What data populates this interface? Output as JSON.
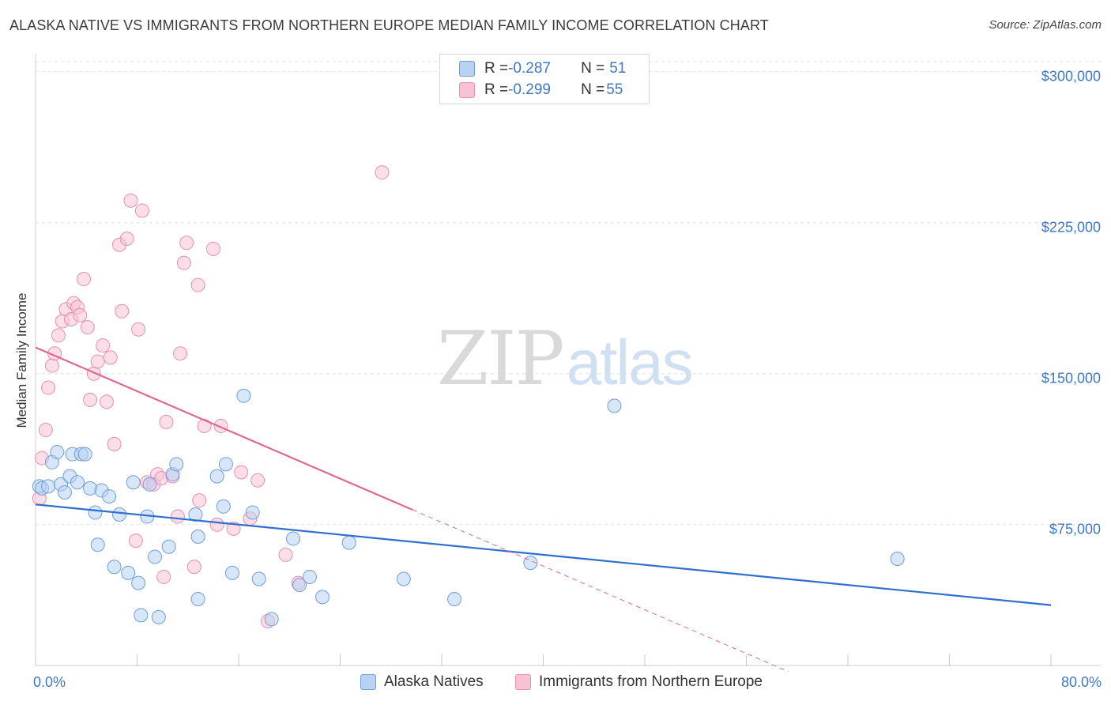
{
  "header": {
    "title": "ALASKA NATIVE VS IMMIGRANTS FROM NORTHERN EUROPE MEDIAN FAMILY INCOME CORRELATION CHART",
    "source": "Source: ZipAtlas.com"
  },
  "watermark": {
    "zip": "ZIP",
    "atlas": "atlas"
  },
  "legend_top": {
    "rows": [
      {
        "r_label": "R = ",
        "r_value": "-0.287",
        "n_label": "N = ",
        "n_value": "51"
      },
      {
        "r_label": "R = ",
        "r_value": "-0.299",
        "n_label": "N = ",
        "n_value": "55"
      }
    ]
  },
  "colors": {
    "blue_fill": "#b7d2f2",
    "blue_stroke": "#6e9fdc",
    "blue_line": "#2f6fcf",
    "pink_fill": "#f7c3d4",
    "pink_stroke": "#e890ae",
    "pink_line": "#e06794",
    "axis_text": "#3f78c4",
    "grid": "#e2e2e2"
  },
  "chart_data": {
    "type": "scatter",
    "title": "ALASKA NATIVE VS IMMIGRANTS FROM NORTHERN EUROPE MEDIAN FAMILY INCOME CORRELATION CHART",
    "xlabel": "",
    "ylabel": "Median Family Income",
    "xlim": [
      0,
      80
    ],
    "ylim": [
      5000,
      305000
    ],
    "x_tick_labels": [
      "0.0%",
      "80.0%"
    ],
    "y_ticks": [
      75000,
      150000,
      225000,
      300000
    ],
    "y_tick_labels": [
      "$75,000",
      "$150,000",
      "$225,000",
      "$300,000"
    ],
    "grid": true,
    "legend_position": "top-center",
    "series": [
      {
        "name": "Alaska Natives",
        "color": "#6e9fdc",
        "r": -0.287,
        "n": 51,
        "trend": {
          "x": [
            0,
            80
          ],
          "y": [
            85000,
            35000
          ],
          "dashed_after": null
        },
        "points": [
          [
            0.3,
            94000
          ],
          [
            0.5,
            93000
          ],
          [
            1.0,
            94000
          ],
          [
            1.3,
            106000
          ],
          [
            1.7,
            111000
          ],
          [
            2.0,
            95000
          ],
          [
            2.3,
            91000
          ],
          [
            2.7,
            99000
          ],
          [
            2.9,
            110000
          ],
          [
            3.3,
            96000
          ],
          [
            3.6,
            110000
          ],
          [
            3.9,
            110000
          ],
          [
            4.3,
            93000
          ],
          [
            4.7,
            81000
          ],
          [
            4.9,
            65000
          ],
          [
            5.2,
            92000
          ],
          [
            5.8,
            89000
          ],
          [
            6.2,
            54000
          ],
          [
            6.6,
            80000
          ],
          [
            7.3,
            51000
          ],
          [
            7.7,
            96000
          ],
          [
            8.1,
            46000
          ],
          [
            8.3,
            30000
          ],
          [
            8.8,
            79000
          ],
          [
            9.0,
            95000
          ],
          [
            9.4,
            59000
          ],
          [
            9.7,
            29000
          ],
          [
            10.5,
            64000
          ],
          [
            10.8,
            100000
          ],
          [
            11.1,
            105000
          ],
          [
            12.8,
            38000
          ],
          [
            12.6,
            80000
          ],
          [
            12.8,
            69000
          ],
          [
            14.3,
            99000
          ],
          [
            14.8,
            84000
          ],
          [
            15.0,
            105000
          ],
          [
            15.5,
            51000
          ],
          [
            16.4,
            139000
          ],
          [
            17.1,
            81000
          ],
          [
            17.6,
            48000
          ],
          [
            18.6,
            28000
          ],
          [
            20.3,
            68000
          ],
          [
            20.8,
            45000
          ],
          [
            21.6,
            49000
          ],
          [
            22.6,
            39000
          ],
          [
            24.7,
            66000
          ],
          [
            29.0,
            48000
          ],
          [
            33.0,
            38000
          ],
          [
            39.0,
            56000
          ],
          [
            45.6,
            134000
          ],
          [
            67.9,
            58000
          ]
        ]
      },
      {
        "name": "Immigrants from Northern Europe",
        "color": "#e890ae",
        "r": -0.299,
        "n": 55,
        "trend": {
          "x": [
            0,
            59.3
          ],
          "y": [
            163000,
            2000
          ],
          "solid_until_x": 29.7
        },
        "points": [
          [
            0.3,
            88000
          ],
          [
            0.5,
            108000
          ],
          [
            0.8,
            122000
          ],
          [
            1.0,
            143000
          ],
          [
            1.3,
            154000
          ],
          [
            1.5,
            160000
          ],
          [
            1.8,
            169000
          ],
          [
            2.1,
            176000
          ],
          [
            2.4,
            182000
          ],
          [
            2.8,
            177000
          ],
          [
            3.0,
            185000
          ],
          [
            3.3,
            183000
          ],
          [
            3.5,
            179000
          ],
          [
            3.8,
            197000
          ],
          [
            4.1,
            173000
          ],
          [
            4.3,
            137000
          ],
          [
            4.6,
            150000
          ],
          [
            4.9,
            156000
          ],
          [
            5.3,
            164000
          ],
          [
            5.6,
            136000
          ],
          [
            5.9,
            158000
          ],
          [
            6.2,
            115000
          ],
          [
            6.6,
            214000
          ],
          [
            6.8,
            181000
          ],
          [
            7.2,
            217000
          ],
          [
            7.5,
            236000
          ],
          [
            7.9,
            67000
          ],
          [
            8.1,
            172000
          ],
          [
            8.4,
            231000
          ],
          [
            8.8,
            96000
          ],
          [
            9.3,
            95000
          ],
          [
            9.6,
            100000
          ],
          [
            9.9,
            98000
          ],
          [
            10.1,
            49000
          ],
          [
            10.3,
            126000
          ],
          [
            10.8,
            99000
          ],
          [
            11.2,
            79000
          ],
          [
            11.4,
            160000
          ],
          [
            11.7,
            205000
          ],
          [
            11.9,
            215000
          ],
          [
            12.5,
            54000
          ],
          [
            12.8,
            194000
          ],
          [
            12.9,
            87000
          ],
          [
            13.3,
            124000
          ],
          [
            14.0,
            212000
          ],
          [
            14.3,
            75000
          ],
          [
            14.6,
            124000
          ],
          [
            15.6,
            73000
          ],
          [
            16.2,
            101000
          ],
          [
            16.9,
            78000
          ],
          [
            17.5,
            97000
          ],
          [
            18.3,
            27000
          ],
          [
            19.7,
            60000
          ],
          [
            20.7,
            46000
          ],
          [
            27.3,
            250000
          ]
        ]
      }
    ]
  },
  "legend_bottom": {
    "items": [
      {
        "label": "Alaska Natives"
      },
      {
        "label": "Immigrants from Northern Europe"
      }
    ]
  }
}
